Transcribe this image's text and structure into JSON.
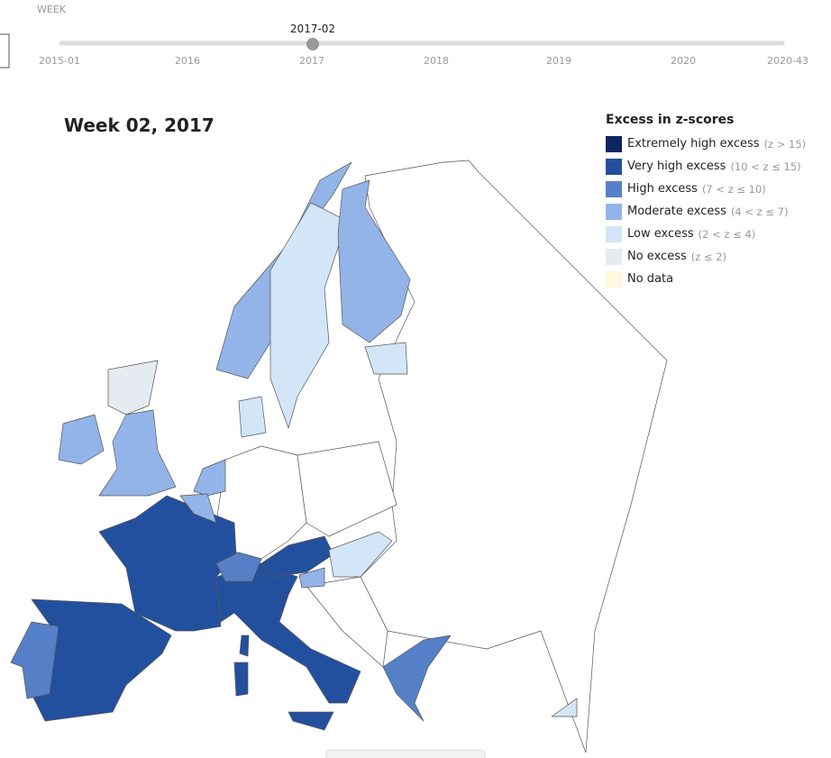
{
  "header": {
    "slider_label": "WEEK",
    "current": "2017-02",
    "ticks": [
      "2015-01",
      "2016",
      "2017",
      "2018",
      "2019",
      "2020",
      "2020-43"
    ]
  },
  "map": {
    "title": "Week 02, 2017"
  },
  "legend": {
    "title": "Excess in z-scores",
    "items": [
      {
        "label": "Extremely high excess",
        "range": "(z > 15)",
        "color": "#0f2462"
      },
      {
        "label": "Very high excess",
        "range": "(10 < z ≤ 15)",
        "color": "#23509e"
      },
      {
        "label": "High excess",
        "range": "(7 < z ≤ 10)",
        "color": "#5580c8"
      },
      {
        "label": "Moderate excess",
        "range": "(4 < z ≤ 7)",
        "color": "#93b4e8"
      },
      {
        "label": "Low excess",
        "range": "(2 < z ≤ 4)",
        "color": "#d3e6f8"
      },
      {
        "label": "No excess",
        "range": "(z ≤ 2)",
        "color": "#e6ebf1"
      },
      {
        "label": "No data",
        "color": "#fff8df"
      }
    ]
  }
}
